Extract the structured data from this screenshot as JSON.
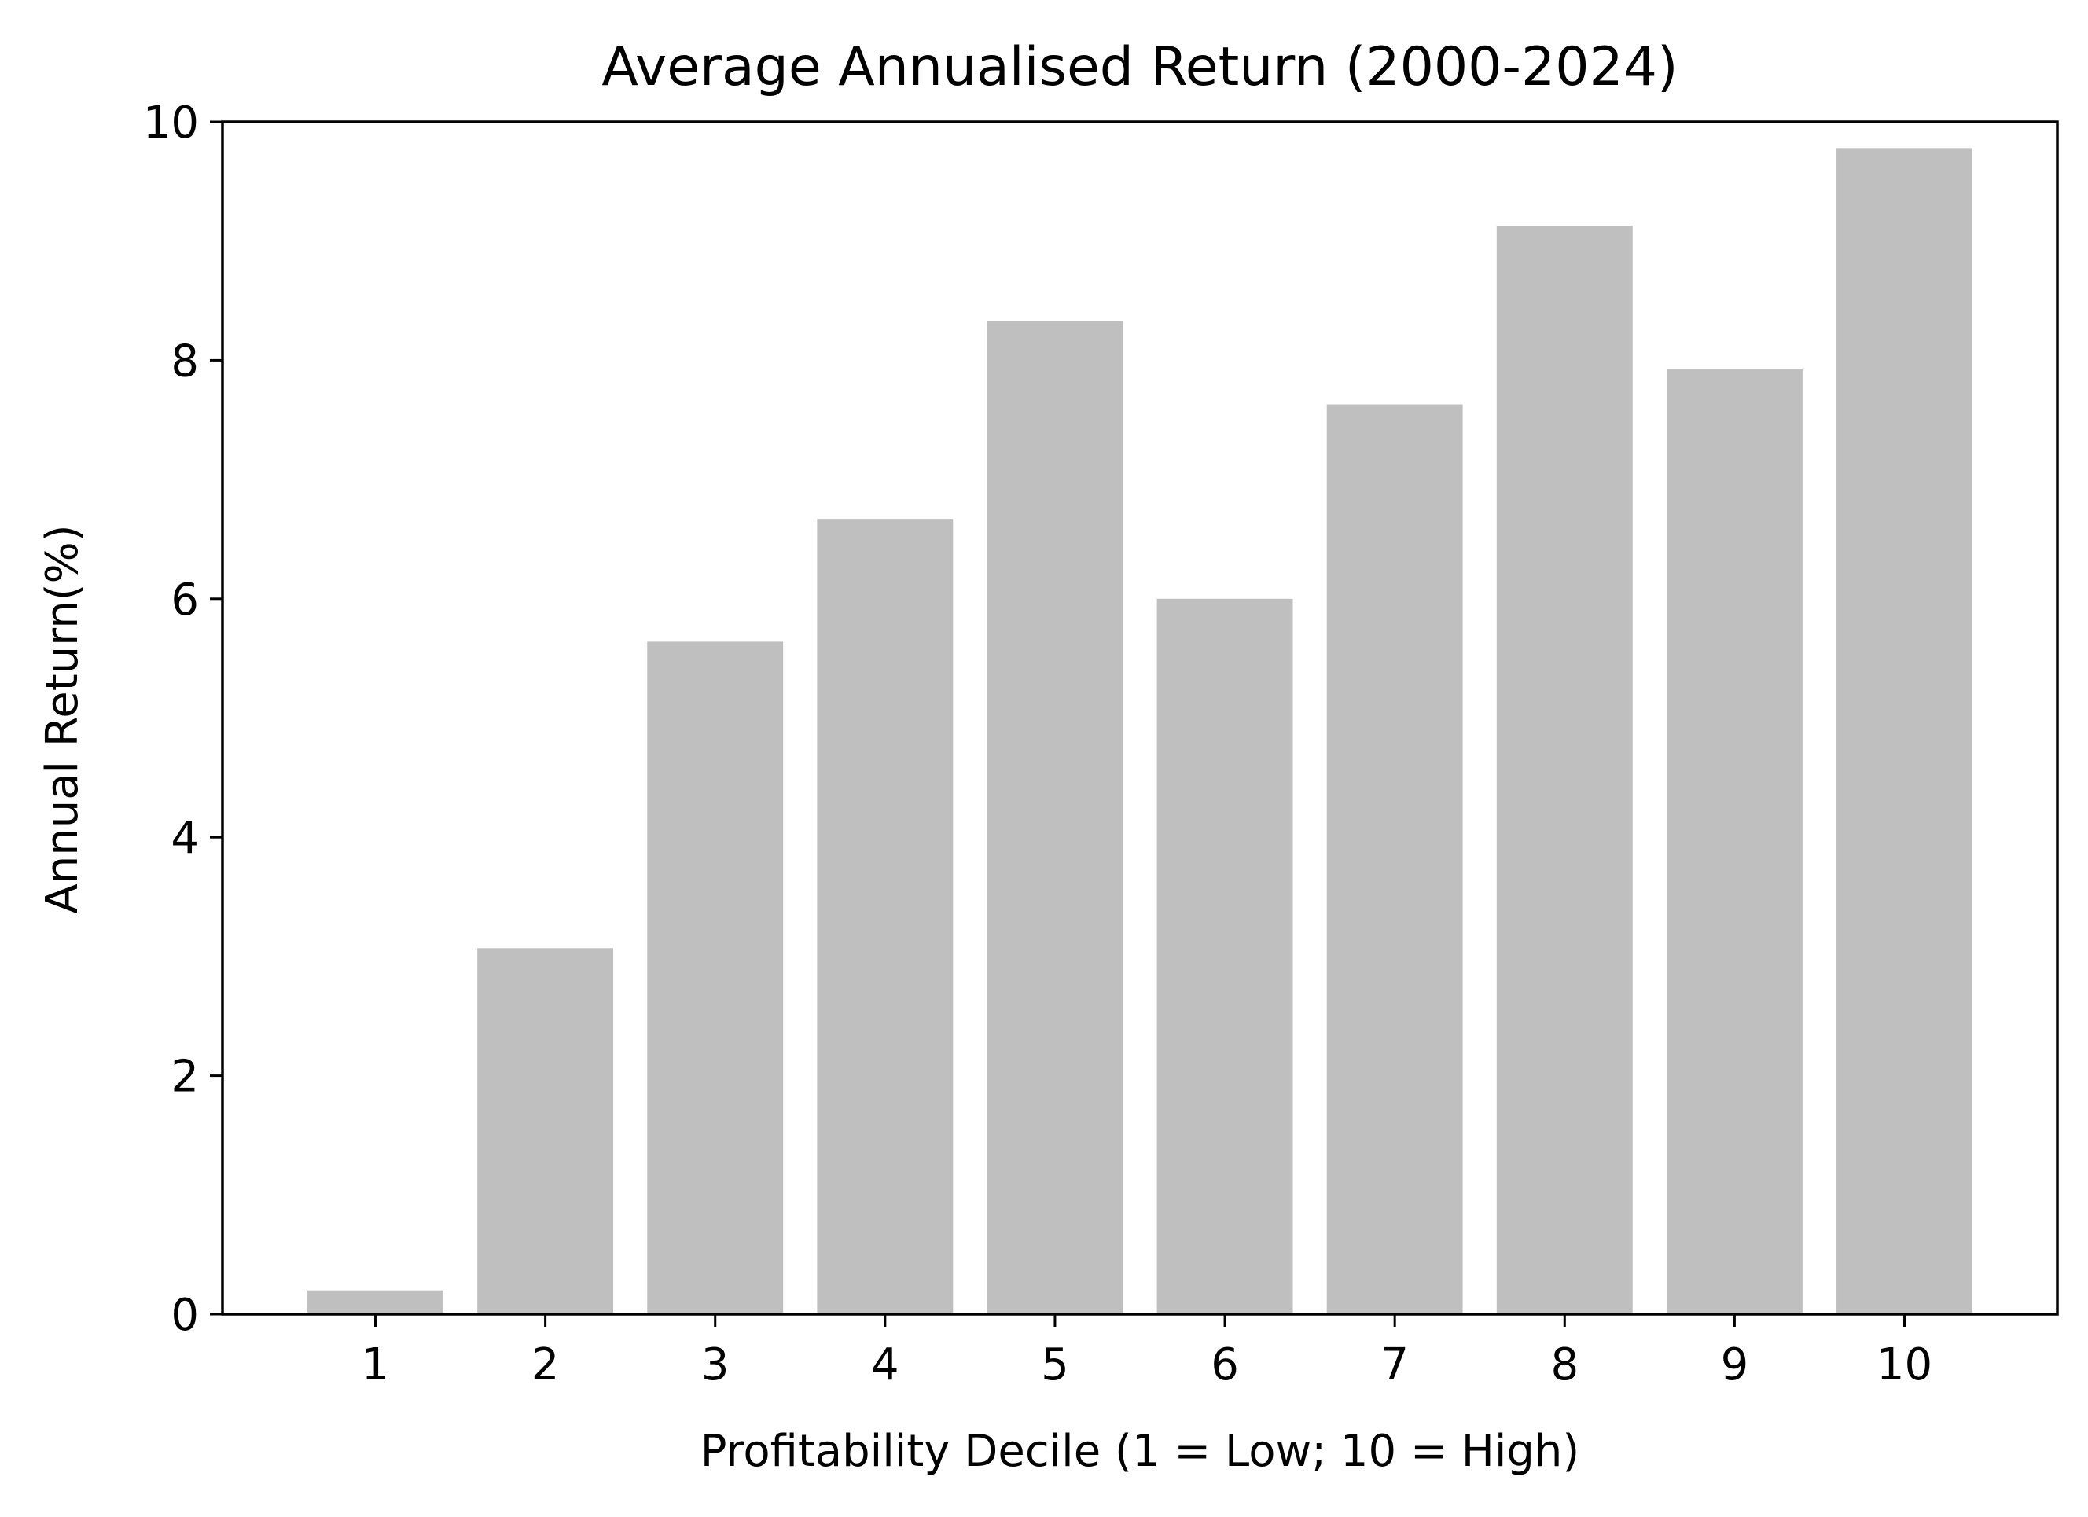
{
  "chart_data": {
    "type": "bar",
    "title": "Average Annualised Return (2000-2024)",
    "xlabel": "Profitability Decile (1 = Low; 10 = High)",
    "ylabel": "Annual Return(%)",
    "categories": [
      "1",
      "2",
      "3",
      "4",
      "5",
      "6",
      "7",
      "8",
      "9",
      "10"
    ],
    "values": [
      0.2,
      3.07,
      5.64,
      6.67,
      8.33,
      6.0,
      7.63,
      9.13,
      7.93,
      9.78
    ],
    "ylim": [
      0,
      10
    ],
    "yticks": [
      0,
      2,
      4,
      6,
      8,
      10
    ],
    "bar_color": "#bfbfbf",
    "grid": false,
    "legend": "none"
  }
}
